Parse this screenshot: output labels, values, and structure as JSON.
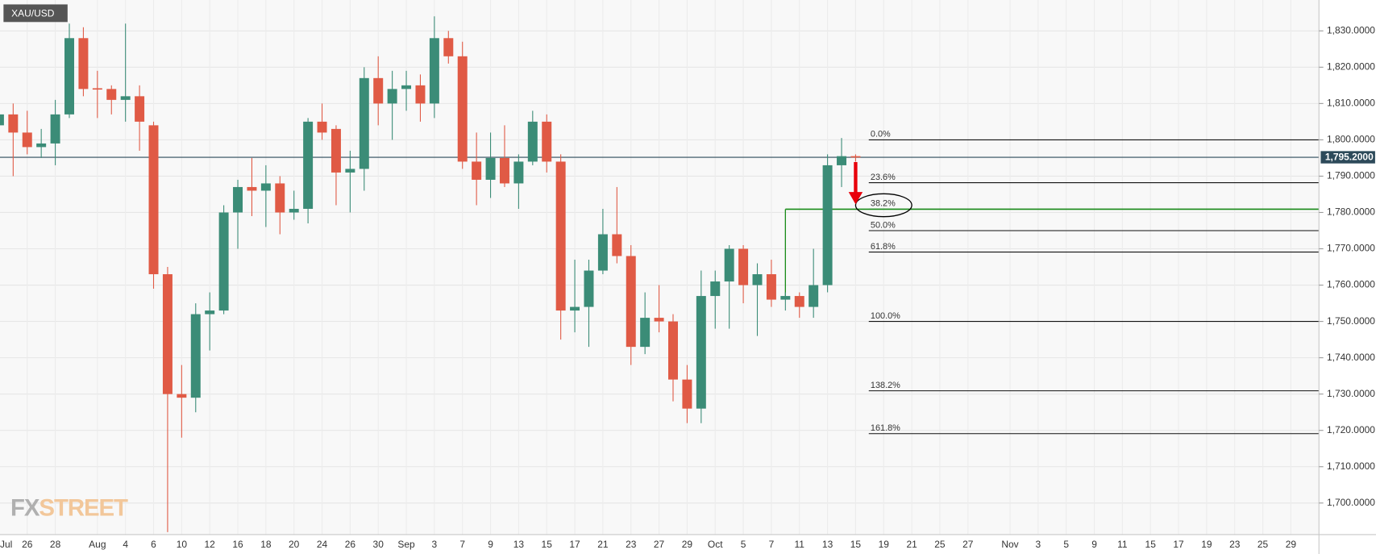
{
  "chart_data": {
    "type": "candlestick",
    "title": "XAU/USD",
    "watermark": [
      "FX",
      "STREET"
    ],
    "categories": [
      "Jul",
      null,
      "26",
      null,
      "28",
      null,
      null,
      "Aug",
      null,
      "4",
      null,
      "6",
      null,
      "10",
      null,
      "12",
      null,
      "16",
      null,
      "18",
      null,
      "20",
      null,
      "24",
      null,
      "26",
      null,
      "30",
      null,
      "Sep",
      null,
      "3",
      null,
      "7",
      null,
      "9",
      null,
      "13",
      null,
      "15",
      null,
      "17",
      null,
      "21",
      null,
      "23",
      null,
      "27",
      null,
      "29",
      null,
      "Oct",
      null,
      "5",
      null,
      "7",
      null,
      "11",
      null,
      "13",
      null,
      "15",
      null,
      "19",
      null,
      "21",
      null,
      "25",
      null,
      "27",
      null,
      null,
      "Nov",
      null,
      "3",
      null,
      "5",
      null,
      "9",
      null,
      "11",
      null,
      "15",
      null,
      "17",
      null,
      "19",
      null,
      "23",
      null,
      "25",
      null,
      "29",
      null
    ],
    "open": [
      1804,
      1807,
      1802,
      1798,
      1799,
      1807,
      1828,
      1814.2,
      1814,
      1811,
      1812,
      1804,
      1763,
      1730,
      1729,
      1752,
      1753,
      1780,
      1787,
      1786,
      1788,
      1780,
      1781,
      1805,
      1803,
      1791,
      1792,
      1817,
      1810,
      1814,
      1815,
      1810,
      1828,
      1823,
      1794,
      1789,
      1795,
      1788,
      1794,
      1805,
      1794,
      1753,
      1754,
      1764,
      1774,
      1768,
      1743,
      1751,
      1750,
      1734,
      1726,
      1757,
      1761,
      1770,
      1760,
      1763,
      1756,
      1757,
      1754,
      1760,
      1793,
      1795.5,
      null,
      null,
      null,
      null,
      null,
      null,
      null,
      null,
      null,
      null,
      null,
      null,
      null,
      null,
      null,
      null,
      null,
      null,
      null,
      null,
      null,
      null,
      null,
      null,
      null,
      null,
      null,
      null,
      null,
      null,
      null,
      null
    ],
    "high": [
      1808,
      1810,
      1808,
      1803,
      1811,
      1832,
      1831,
      1819,
      1815,
      1832,
      1815,
      1805,
      1765,
      1738,
      1755,
      1758,
      1782,
      1789,
      1795,
      1793,
      1790,
      1786,
      1806,
      1810,
      1804,
      1797,
      1820,
      1823,
      1819,
      1819,
      1818,
      1834,
      1830,
      1827,
      1802,
      1802,
      1804,
      1796,
      1808,
      1807,
      1796,
      1767,
      1767,
      1781,
      1787,
      1771,
      1758,
      1760,
      1752,
      1738,
      1764,
      1764,
      1771,
      1771,
      1766,
      1767,
      1758,
      1758,
      1770,
      1796,
      1800.5,
      1796,
      null,
      null,
      null,
      null,
      null,
      null,
      null,
      null,
      null,
      null,
      null,
      null,
      null,
      null,
      null,
      null,
      null,
      null,
      null,
      null,
      null,
      null,
      null,
      null,
      null,
      null,
      null,
      null,
      null,
      null,
      null,
      null
    ],
    "low": [
      1799,
      1790,
      1796,
      1795,
      1793,
      1806,
      1812,
      1806,
      1807,
      1805,
      1797,
      1759,
      1692,
      1718,
      1725,
      1742,
      1752,
      1770,
      1779,
      1776,
      1774,
      1778,
      1777,
      1800,
      1782,
      1780,
      1786,
      1804,
      1800,
      1808,
      1805,
      1806,
      1821,
      1792,
      1782,
      1784,
      1787,
      1781,
      1793,
      1791,
      1745,
      1747,
      1743,
      1763,
      1766,
      1738,
      1741,
      1747,
      1728,
      1722,
      1722,
      1748,
      1748,
      1755,
      1746,
      1754,
      1753,
      1751,
      1751,
      1758,
      1787,
      1794,
      null,
      null,
      null,
      null,
      null,
      null,
      null,
      null,
      null,
      null,
      null,
      null,
      null,
      null,
      null,
      null,
      null,
      null,
      null,
      null,
      null,
      null,
      null,
      null,
      null,
      null,
      null,
      null,
      null,
      null,
      null,
      null
    ],
    "close": [
      1807,
      1802,
      1798,
      1799,
      1807,
      1828,
      1814,
      1814,
      1811,
      1812,
      1805,
      1763,
      1730,
      1729,
      1752,
      1753,
      1780,
      1787,
      1786,
      1788,
      1780,
      1781,
      1805,
      1802,
      1791,
      1792,
      1817,
      1810,
      1814,
      1815,
      1810,
      1828,
      1823,
      1794,
      1789,
      1795,
      1788,
      1794,
      1805,
      1794,
      1753,
      1754,
      1764,
      1774,
      1768,
      1743,
      1751,
      1750,
      1734,
      1726,
      1757,
      1761,
      1770,
      1760,
      1763,
      1756,
      1757,
      1754,
      1760,
      1793,
      1795.5,
      1795.2,
      null,
      null,
      null,
      null,
      null,
      null,
      null,
      null,
      null,
      null,
      null,
      null,
      null,
      null,
      null,
      null,
      null,
      null,
      null,
      null,
      null,
      null,
      null,
      null,
      null,
      null,
      null,
      null,
      null,
      null,
      null,
      null
    ],
    "up_color": "#3b8c77",
    "down_color": "#e05a45",
    "ylim": [
      1691.3,
      1838.5
    ],
    "yticks": [
      {
        "value": 1700,
        "label": "1,700.0000"
      },
      {
        "value": 1710,
        "label": "1,710.0000"
      },
      {
        "value": 1720,
        "label": "1,720.0000"
      },
      {
        "value": 1730,
        "label": "1,730.0000"
      },
      {
        "value": 1740,
        "label": "1,740.0000"
      },
      {
        "value": 1750,
        "label": "1,750.0000"
      },
      {
        "value": 1760,
        "label": "1,760.0000"
      },
      {
        "value": 1770,
        "label": "1,770.0000"
      },
      {
        "value": 1780,
        "label": "1,780.0000"
      },
      {
        "value": 1790,
        "label": "1,790.0000"
      },
      {
        "value": 1800,
        "label": "1,800.0000"
      },
      {
        "value": 1810,
        "label": "1,810.0000"
      },
      {
        "value": 1820,
        "label": "1,820.0000"
      },
      {
        "value": 1830,
        "label": "1,830.0000"
      }
    ],
    "last_price": {
      "value": 1795.2,
      "label": "1,795.2000"
    },
    "fib_levels": [
      {
        "label": "0.0%",
        "value": 1800
      },
      {
        "label": "23.6%",
        "value": 1788.2
      },
      {
        "label": "38.2%",
        "value": 1780.9
      },
      {
        "label": "50.0%",
        "value": 1775
      },
      {
        "label": "61.8%",
        "value": 1769.1
      },
      {
        "label": "100.0%",
        "value": 1750
      },
      {
        "label": "138.2%",
        "value": 1730.9
      },
      {
        "label": "161.8%",
        "value": 1719.1
      }
    ],
    "grid": true
  }
}
